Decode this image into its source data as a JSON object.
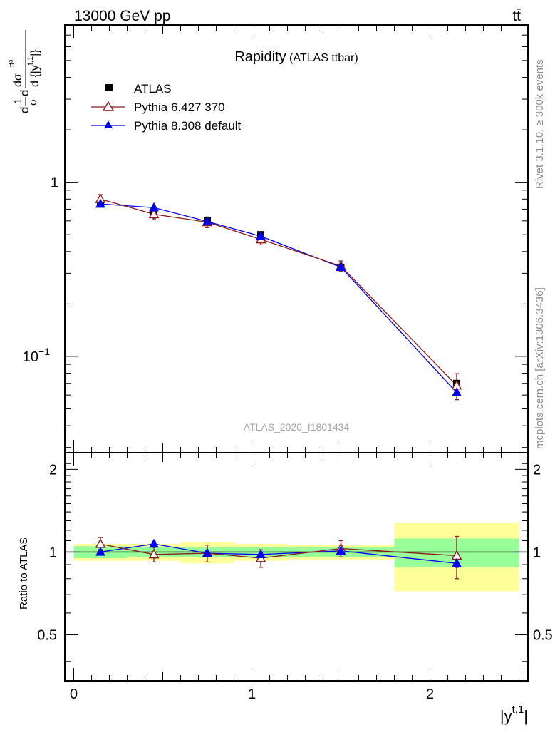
{
  "header": {
    "energy_label": "13000 GeV pp",
    "process_label": "tt̄"
  },
  "side_labels": {
    "rivet": "Rivet 3.1.10, ≥ 300k events",
    "source": "mcplots.cern.ch [arXiv:1306.3436]"
  },
  "main_panel": {
    "title": "Rapidity",
    "subtitle": "(ATLAS ttbar)",
    "analysis_id": "ATLAS_2020_I1801434",
    "ylabel_parts": {
      "d": "d",
      "one": "1",
      "sigma": "σ",
      "dsigma": "dσ",
      "tt": "ttᵃ",
      "denominator": "d {|y",
      "superscript": "t,1",
      "close": "|}"
    },
    "yticks": [
      {
        "label": "1",
        "value": 1
      },
      {
        "label": "10",
        "exponent": "−1",
        "value": 0.1
      }
    ]
  },
  "ratio_panel": {
    "ylabel": "Ratio to ATLAS",
    "yticks": [
      {
        "label": "2",
        "value": 2
      },
      {
        "label": "1",
        "value": 1
      },
      {
        "label": "0.5",
        "value": 0.5
      }
    ]
  },
  "xaxis": {
    "label": "|y",
    "label_sup": "t,1",
    "label_close": "|",
    "ticks": [
      "0",
      "1",
      "2"
    ]
  },
  "colors": {
    "atlas": "#000000",
    "pythia6": "#8b1a1a",
    "pythia8": "#0000ee",
    "band_outer": "#ffff99",
    "band_inner": "#99ff99",
    "analysis_text": "#a6a6a6",
    "side_text": "#8c8c8c"
  },
  "chart_data": {
    "type": "line",
    "xlabel": "|y^{t,1}|",
    "ylabel": "d(1/σ)dσ^{ttbar}/d{|y^{t,1}|}",
    "yscale": "log",
    "xlim": [
      -0.05,
      2.55
    ],
    "ylim": [
      0.028,
      8.0
    ],
    "ratio_ylim": [
      0.34,
      2.3
    ],
    "bins": [
      [
        0.0,
        0.3
      ],
      [
        0.3,
        0.6
      ],
      [
        0.6,
        0.9
      ],
      [
        0.9,
        1.2
      ],
      [
        1.2,
        1.8
      ],
      [
        1.8,
        2.5
      ]
    ],
    "x": [
      0.15,
      0.45,
      0.75,
      1.05,
      1.5,
      2.15
    ],
    "legend_position": "top-left",
    "series": [
      {
        "name": "ATLAS",
        "marker": "square",
        "values": [
          0.75,
          0.67,
          0.6,
          0.5,
          0.325,
          0.07
        ],
        "band_inner": [
          0.05,
          0.04,
          0.04,
          0.04,
          0.04,
          0.12
        ],
        "band_outer": [
          0.07,
          0.07,
          0.09,
          0.07,
          0.06,
          0.28
        ]
      },
      {
        "name": "Pythia 6.427 370",
        "marker": "open-triangle",
        "values": [
          0.8,
          0.655,
          0.59,
          0.47,
          0.33,
          0.068
        ],
        "ratio": [
          1.07,
          0.98,
          0.99,
          0.95,
          1.03,
          0.97
        ],
        "ratio_err": [
          0.06,
          0.06,
          0.07,
          0.07,
          0.07,
          0.17
        ]
      },
      {
        "name": "Pythia 8.308 default",
        "marker": "filled-triangle",
        "values": [
          0.75,
          0.715,
          0.595,
          0.49,
          0.325,
          0.062
        ],
        "ratio": [
          1.0,
          1.07,
          0.99,
          0.98,
          1.01,
          0.91
        ],
        "ratio_err": [
          0.02,
          0.02,
          0.02,
          0.02,
          0.02,
          0.03
        ]
      }
    ]
  }
}
